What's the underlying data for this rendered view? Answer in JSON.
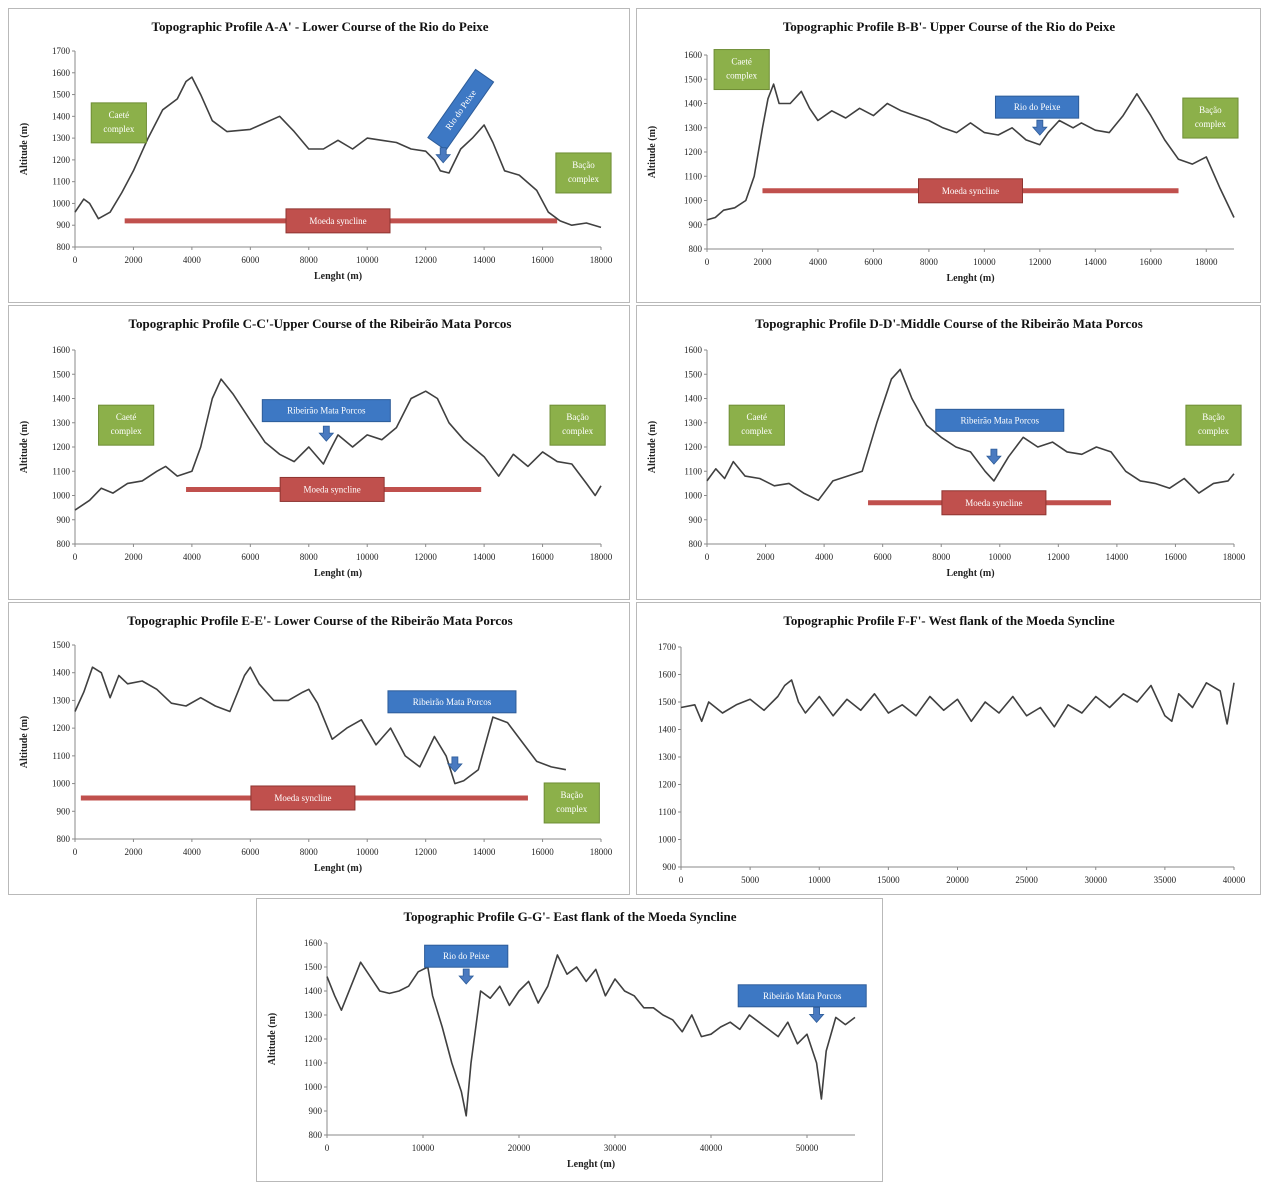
{
  "chart_data": [
    {
      "id": "A",
      "type": "line",
      "title": "Topographic Profile A-A' - Lower Course of the Rio do Peixe",
      "xlabel": "Lenght (m)",
      "ylabel": "Altitude (m)",
      "xlim": [
        0,
        18000
      ],
      "ylim": [
        800,
        1700
      ],
      "xticks": [
        "0",
        "2000",
        "4000",
        "6000",
        "8000",
        "10000",
        "12000",
        "14000",
        "16000",
        "18000"
      ],
      "yticks": [
        "800",
        "900",
        "1000",
        "1100",
        "1200",
        "1300",
        "1400",
        "1500",
        "1600",
        "1700"
      ],
      "x": [
        0,
        300,
        500,
        800,
        1200,
        1600,
        2000,
        2500,
        3000,
        3500,
        3800,
        4000,
        4300,
        4700,
        5200,
        6000,
        6500,
        7000,
        7500,
        8000,
        8500,
        9000,
        9500,
        10000,
        10500,
        11000,
        11500,
        12000,
        12300,
        12500,
        12800,
        13200,
        13600,
        14000,
        14300,
        14700,
        15200,
        15800,
        16200,
        16600,
        17000,
        17500,
        18000
      ],
      "y": [
        960,
        1020,
        1000,
        930,
        960,
        1050,
        1150,
        1300,
        1430,
        1480,
        1560,
        1580,
        1500,
        1380,
        1330,
        1340,
        1370,
        1400,
        1330,
        1250,
        1250,
        1290,
        1250,
        1300,
        1290,
        1280,
        1250,
        1240,
        1200,
        1150,
        1140,
        1250,
        1300,
        1360,
        1280,
        1150,
        1130,
        1060,
        960,
        920,
        900,
        910,
        890
      ],
      "annotations": [
        {
          "kind": "green",
          "text": [
            "Caeté",
            "complex"
          ],
          "x": 1500,
          "y": 1370
        },
        {
          "kind": "blue",
          "text": [
            "Rio do Peixe"
          ],
          "x": 13200,
          "y": 1430,
          "rotate": -55
        },
        {
          "kind": "green",
          "text": [
            "Bação",
            "complex"
          ],
          "x": 17400,
          "y": 1140
        },
        {
          "kind": "red",
          "text": [
            "Moeda syncline"
          ],
          "x": 9000,
          "y": 920,
          "span": [
            1700,
            16500
          ]
        },
        {
          "kind": "arrow",
          "x": 12600,
          "y": 1210
        }
      ]
    },
    {
      "id": "B",
      "type": "line",
      "title": "Topographic Profile B-B'- Upper Course of the Rio do Peixe",
      "xlabel": "Lenght (m)",
      "ylabel": "Altitude (m)",
      "xlim": [
        0,
        19000
      ],
      "ylim": [
        800,
        1600
      ],
      "xticks": [
        "0",
        "2000",
        "4000",
        "6000",
        "8000",
        "10000",
        "12000",
        "14000",
        "16000",
        "18000"
      ],
      "yticks": [
        "800",
        "900",
        "1000",
        "1100",
        "1200",
        "1300",
        "1400",
        "1500",
        "1600"
      ],
      "x": [
        0,
        300,
        600,
        1000,
        1400,
        1700,
        2000,
        2200,
        2400,
        2600,
        3000,
        3400,
        3700,
        4000,
        4500,
        5000,
        5500,
        6000,
        6500,
        7000,
        7500,
        8000,
        8500,
        9000,
        9500,
        10000,
        10500,
        11000,
        11500,
        12000,
        12300,
        12700,
        13200,
        13500,
        14000,
        14500,
        15000,
        15500,
        16000,
        16500,
        17000,
        17500,
        18000,
        18500,
        19000
      ],
      "y": [
        920,
        930,
        960,
        970,
        1000,
        1100,
        1300,
        1420,
        1480,
        1400,
        1400,
        1450,
        1380,
        1330,
        1370,
        1340,
        1380,
        1350,
        1400,
        1370,
        1350,
        1330,
        1300,
        1280,
        1320,
        1280,
        1270,
        1300,
        1250,
        1230,
        1280,
        1330,
        1300,
        1320,
        1290,
        1280,
        1350,
        1440,
        1350,
        1250,
        1170,
        1150,
        1180,
        1050,
        930
      ],
      "annotations": [
        {
          "kind": "green",
          "text": [
            "Caeté",
            "complex"
          ],
          "x": 1250,
          "y": 1540
        },
        {
          "kind": "blue",
          "text": [
            "Rio do Peixe"
          ],
          "x": 11900,
          "y": 1385
        },
        {
          "kind": "green",
          "text": [
            "Bação",
            "complex"
          ],
          "x": 18150,
          "y": 1340
        },
        {
          "kind": "red",
          "text": [
            "Moeda syncline"
          ],
          "x": 9500,
          "y": 1040,
          "span": [
            2000,
            17000
          ]
        },
        {
          "kind": "arrow",
          "x": 12000,
          "y": 1290
        }
      ]
    },
    {
      "id": "C",
      "type": "line",
      "title": "Topographic Profile C-C'-Upper Course of the Ribeirão Mata Porcos",
      "xlabel": "Lenght (m)",
      "ylabel": "Altitude (m)",
      "xlim": [
        0,
        18000
      ],
      "ylim": [
        800,
        1600
      ],
      "xticks": [
        "0",
        "2000",
        "4000",
        "6000",
        "8000",
        "10000",
        "12000",
        "14000",
        "16000",
        "18000"
      ],
      "yticks": [
        "800",
        "900",
        "1000",
        "1100",
        "1200",
        "1300",
        "1400",
        "1500",
        "1600"
      ],
      "x": [
        0,
        500,
        900,
        1300,
        1800,
        2300,
        2800,
        3100,
        3500,
        4000,
        4300,
        4700,
        5000,
        5400,
        6000,
        6500,
        7000,
        7500,
        8000,
        8500,
        8700,
        9000,
        9500,
        10000,
        10500,
        11000,
        11500,
        12000,
        12400,
        12800,
        13300,
        14000,
        14500,
        15000,
        15500,
        16000,
        16500,
        17000,
        17500,
        17800,
        18000
      ],
      "y": [
        940,
        980,
        1030,
        1010,
        1050,
        1060,
        1100,
        1120,
        1080,
        1100,
        1200,
        1400,
        1480,
        1420,
        1310,
        1220,
        1170,
        1140,
        1200,
        1130,
        1180,
        1250,
        1200,
        1250,
        1230,
        1280,
        1400,
        1430,
        1400,
        1300,
        1230,
        1160,
        1080,
        1170,
        1120,
        1180,
        1140,
        1130,
        1050,
        1000,
        1040
      ],
      "annotations": [
        {
          "kind": "green",
          "text": [
            "Caeté",
            "complex"
          ],
          "x": 1750,
          "y": 1290
        },
        {
          "kind": "blue",
          "text": [
            "Ribeirão Mata Porcos"
          ],
          "x": 8600,
          "y": 1350
        },
        {
          "kind": "green",
          "text": [
            "Bação",
            "complex"
          ],
          "x": 17200,
          "y": 1290
        },
        {
          "kind": "red",
          "text": [
            "Moeda syncline"
          ],
          "x": 8800,
          "y": 1025,
          "span": [
            3800,
            13900
          ]
        },
        {
          "kind": "arrow",
          "x": 8600,
          "y": 1245
        }
      ]
    },
    {
      "id": "D",
      "type": "line",
      "title": "Topographic Profile D-D'-Middle Course of the Ribeirão Mata Porcos",
      "xlabel": "Lenght (m)",
      "ylabel": "Altitude (m)",
      "xlim": [
        0,
        18000
      ],
      "ylim": [
        800,
        1600
      ],
      "xticks": [
        "0",
        "2000",
        "4000",
        "6000",
        "8000",
        "10000",
        "12000",
        "14000",
        "16000",
        "18000"
      ],
      "yticks": [
        "800",
        "900",
        "1000",
        "1100",
        "1200",
        "1300",
        "1400",
        "1500",
        "1600"
      ],
      "x": [
        0,
        300,
        600,
        900,
        1300,
        1800,
        2300,
        2800,
        3300,
        3800,
        4300,
        4800,
        5300,
        5800,
        6300,
        6600,
        7000,
        7500,
        8000,
        8500,
        9000,
        9500,
        9800,
        10300,
        10800,
        11300,
        11800,
        12300,
        12800,
        13300,
        13800,
        14300,
        14800,
        15300,
        15800,
        16300,
        16800,
        17300,
        17800,
        18000
      ],
      "y": [
        1060,
        1110,
        1070,
        1140,
        1080,
        1070,
        1040,
        1050,
        1010,
        980,
        1060,
        1080,
        1100,
        1300,
        1480,
        1520,
        1400,
        1290,
        1240,
        1200,
        1180,
        1100,
        1060,
        1160,
        1240,
        1200,
        1220,
        1180,
        1170,
        1200,
        1180,
        1100,
        1060,
        1050,
        1030,
        1070,
        1010,
        1050,
        1060,
        1090
      ],
      "annotations": [
        {
          "kind": "green",
          "text": [
            "Caeté",
            "complex"
          ],
          "x": 1700,
          "y": 1290
        },
        {
          "kind": "blue",
          "text": [
            "Ribeirão Mata Porcos"
          ],
          "x": 10000,
          "y": 1310
        },
        {
          "kind": "green",
          "text": [
            "Bação",
            "complex"
          ],
          "x": 17300,
          "y": 1290
        },
        {
          "kind": "red",
          "text": [
            "Moeda syncline"
          ],
          "x": 9800,
          "y": 970,
          "span": [
            5500,
            13800
          ]
        },
        {
          "kind": "arrow",
          "x": 9800,
          "y": 1150
        }
      ]
    },
    {
      "id": "E",
      "type": "line",
      "title": "Topographic Profile E-E'- Lower Course of the Ribeirão Mata Porcos",
      "xlabel": "Lenght (m)",
      "ylabel": "Altitude (m)",
      "xlim": [
        0,
        18000
      ],
      "ylim": [
        800,
        1500
      ],
      "xticks": [
        "0",
        "2000",
        "4000",
        "6000",
        "8000",
        "10000",
        "12000",
        "14000",
        "16000",
        "18000"
      ],
      "yticks": [
        "800",
        "900",
        "1000",
        "1100",
        "1200",
        "1300",
        "1400",
        "1500"
      ],
      "x": [
        0,
        300,
        600,
        900,
        1200,
        1500,
        1800,
        2300,
        2800,
        3300,
        3800,
        4300,
        4800,
        5300,
        5800,
        6000,
        6300,
        6800,
        7300,
        7800,
        8000,
        8300,
        8800,
        9300,
        9800,
        10300,
        10800,
        11300,
        11800,
        12300,
        12700,
        13000,
        13300,
        13800,
        14300,
        14800,
        15300,
        15800,
        16300,
        16800
      ],
      "y": [
        1260,
        1330,
        1420,
        1400,
        1310,
        1390,
        1360,
        1370,
        1340,
        1290,
        1280,
        1310,
        1280,
        1260,
        1390,
        1420,
        1360,
        1300,
        1300,
        1330,
        1340,
        1290,
        1160,
        1200,
        1230,
        1140,
        1200,
        1100,
        1060,
        1170,
        1100,
        1000,
        1010,
        1050,
        1240,
        1220,
        1150,
        1080,
        1060,
        1050
      ],
      "annotations": [
        {
          "kind": "blue",
          "text": [
            "Ribeirão Mata Porcos"
          ],
          "x": 12900,
          "y": 1295
        },
        {
          "kind": "green",
          "text": [
            "Bação",
            "complex"
          ],
          "x": 17000,
          "y": 930
        },
        {
          "kind": "red",
          "text": [
            "Moeda syncline"
          ],
          "x": 7800,
          "y": 948,
          "span": [
            200,
            15500
          ]
        },
        {
          "kind": "arrow",
          "x": 13000,
          "y": 1060
        }
      ]
    },
    {
      "id": "F",
      "type": "line",
      "title": "Topographic Profile F-F'- West flank of the Moeda Syncline",
      "xlabel": "",
      "ylabel": "",
      "xlim": [
        0,
        40000
      ],
      "ylim": [
        900,
        1700
      ],
      "xticks": [
        "0",
        "5000",
        "10000",
        "15000",
        "20000",
        "25000",
        "30000",
        "35000",
        "40000"
      ],
      "yticks": [
        "900",
        "1000",
        "1100",
        "1200",
        "1300",
        "1400",
        "1500",
        "1600",
        "1700"
      ],
      "x": [
        0,
        1000,
        1500,
        2000,
        3000,
        4000,
        5000,
        6000,
        7000,
        7500,
        8000,
        8500,
        9000,
        10000,
        11000,
        12000,
        13000,
        14000,
        15000,
        16000,
        17000,
        18000,
        19000,
        20000,
        21000,
        22000,
        23000,
        24000,
        25000,
        26000,
        27000,
        28000,
        29000,
        30000,
        31000,
        32000,
        33000,
        34000,
        35000,
        35500,
        36000,
        37000,
        38000,
        39000,
        39500,
        40000
      ],
      "y": [
        1480,
        1490,
        1430,
        1500,
        1460,
        1490,
        1510,
        1470,
        1520,
        1560,
        1580,
        1500,
        1460,
        1520,
        1450,
        1510,
        1470,
        1530,
        1460,
        1490,
        1450,
        1520,
        1470,
        1510,
        1430,
        1500,
        1460,
        1520,
        1450,
        1480,
        1410,
        1490,
        1460,
        1520,
        1480,
        1530,
        1500,
        1560,
        1450,
        1430,
        1530,
        1480,
        1570,
        1540,
        1420,
        1570
      ],
      "annotations": []
    },
    {
      "id": "G",
      "type": "line",
      "title": "Topographic Profile G-G'- East flank of the Moeda Syncline",
      "xlabel": "Lenght (m)",
      "ylabel": "Altitude (m)",
      "xlim": [
        0,
        55000
      ],
      "ylim": [
        800,
        1600
      ],
      "xticks": [
        "0",
        "10000",
        "20000",
        "30000",
        "40000",
        "50000"
      ],
      "yticks": [
        "800",
        "900",
        "1000",
        "1100",
        "1200",
        "1300",
        "1400",
        "1500",
        "1600"
      ],
      "x": [
        0,
        800,
        1500,
        2500,
        3500,
        4500,
        5500,
        6500,
        7500,
        8500,
        9500,
        10500,
        11000,
        12000,
        13000,
        14000,
        14500,
        15000,
        16000,
        17000,
        18000,
        19000,
        20000,
        21000,
        22000,
        23000,
        24000,
        25000,
        26000,
        27000,
        28000,
        29000,
        30000,
        31000,
        32000,
        33000,
        34000,
        35000,
        36000,
        37000,
        38000,
        39000,
        40000,
        41000,
        42000,
        43000,
        44000,
        45000,
        46000,
        47000,
        48000,
        49000,
        50000,
        51000,
        51500,
        52000,
        53000,
        54000,
        55000
      ],
      "y": [
        1460,
        1380,
        1320,
        1420,
        1520,
        1460,
        1400,
        1390,
        1400,
        1420,
        1480,
        1500,
        1380,
        1250,
        1100,
        980,
        880,
        1100,
        1400,
        1370,
        1420,
        1340,
        1400,
        1440,
        1350,
        1420,
        1550,
        1470,
        1500,
        1440,
        1490,
        1380,
        1450,
        1400,
        1380,
        1330,
        1330,
        1300,
        1280,
        1230,
        1300,
        1210,
        1220,
        1250,
        1270,
        1240,
        1300,
        1270,
        1240,
        1210,
        1270,
        1180,
        1220,
        1100,
        950,
        1150,
        1290,
        1260,
        1290
      ],
      "annotations": [
        {
          "kind": "blue",
          "text": [
            "Rio do Peixe"
          ],
          "x": 14500,
          "y": 1545
        },
        {
          "kind": "arrow",
          "x": 14500,
          "y": 1450
        },
        {
          "kind": "blue",
          "text": [
            "Ribeirão Mata Porcos"
          ],
          "x": 49500,
          "y": 1380
        },
        {
          "kind": "arrow",
          "x": 51000,
          "y": 1290
        }
      ]
    }
  ]
}
